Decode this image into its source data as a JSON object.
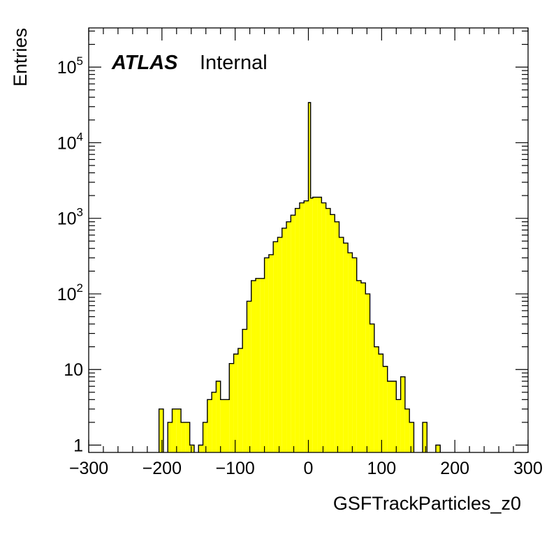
{
  "chart_data": {
    "type": "bar",
    "title": "",
    "label_bold": "ATLAS",
    "label_text": "Internal",
    "xlabel": "GSFTrackParticles_z0",
    "ylabel": "Entries",
    "xlim": [
      -300,
      300
    ],
    "ylim": [
      0.8,
      330000
    ],
    "yscale": "log",
    "fill_color": "#ffff00",
    "line_color": "#000000",
    "x_ticks": [
      -300,
      -200,
      -100,
      0,
      100,
      200,
      300
    ],
    "x_tick_labels": [
      "−300",
      "−200",
      "−100",
      "0",
      "100",
      "200",
      "300"
    ],
    "y_ticks": [
      {
        "value": 1,
        "label": "1",
        "exp": ""
      },
      {
        "value": 10,
        "label": "10",
        "exp": ""
      },
      {
        "value": 100,
        "label": "10",
        "exp": "2"
      },
      {
        "value": 1000,
        "label": "10",
        "exp": "3"
      },
      {
        "value": 10000,
        "label": "10",
        "exp": "4"
      },
      {
        "value": 100000,
        "label": "10",
        "exp": "5"
      }
    ],
    "bin_width": 6,
    "bins": [
      {
        "x0": -204,
        "y": 3
      },
      {
        "x0": -198,
        "y": 0
      },
      {
        "x0": -192,
        "y": 2
      },
      {
        "x0": -186,
        "y": 3
      },
      {
        "x0": -180,
        "y": 3
      },
      {
        "x0": -174,
        "y": 2
      },
      {
        "x0": -168,
        "y": 2
      },
      {
        "x0": -162,
        "y": 1
      },
      {
        "x0": -156,
        "y": 0
      },
      {
        "x0": -150,
        "y": 1
      },
      {
        "x0": -144,
        "y": 2
      },
      {
        "x0": -138,
        "y": 4
      },
      {
        "x0": -132,
        "y": 5
      },
      {
        "x0": -126,
        "y": 7
      },
      {
        "x0": -120,
        "y": 4
      },
      {
        "x0": -114,
        "y": 4
      },
      {
        "x0": -108,
        "y": 12
      },
      {
        "x0": -102,
        "y": 16
      },
      {
        "x0": -96,
        "y": 19
      },
      {
        "x0": -90,
        "y": 34
      },
      {
        "x0": -84,
        "y": 80
      },
      {
        "x0": -78,
        "y": 150
      },
      {
        "x0": -72,
        "y": 160
      },
      {
        "x0": -66,
        "y": 160
      },
      {
        "x0": -60,
        "y": 300
      },
      {
        "x0": -54,
        "y": 330
      },
      {
        "x0": -48,
        "y": 490
      },
      {
        "x0": -42,
        "y": 560
      },
      {
        "x0": -36,
        "y": 740
      },
      {
        "x0": -30,
        "y": 900
      },
      {
        "x0": -24,
        "y": 1100
      },
      {
        "x0": -18,
        "y": 1350
      },
      {
        "x0": -12,
        "y": 1600
      },
      {
        "x0": -6,
        "y": 1700
      },
      {
        "x0": 0,
        "y": 1850
      },
      {
        "x0": 6,
        "y": 1900
      },
      {
        "x0": 12,
        "y": 1900
      },
      {
        "x0": 18,
        "y": 1600
      },
      {
        "x0": 24,
        "y": 1350
      },
      {
        "x0": 30,
        "y": 1120
      },
      {
        "x0": 36,
        "y": 900
      },
      {
        "x0": 42,
        "y": 560
      },
      {
        "x0": 48,
        "y": 470
      },
      {
        "x0": 54,
        "y": 350
      },
      {
        "x0": 60,
        "y": 300
      },
      {
        "x0": 66,
        "y": 150
      },
      {
        "x0": 72,
        "y": 140
      },
      {
        "x0": 78,
        "y": 100
      },
      {
        "x0": 84,
        "y": 40
      },
      {
        "x0": 90,
        "y": 20
      },
      {
        "x0": 96,
        "y": 16
      },
      {
        "x0": 102,
        "y": 11
      },
      {
        "x0": 108,
        "y": 7
      },
      {
        "x0": 114,
        "y": 7
      },
      {
        "x0": 120,
        "y": 4
      },
      {
        "x0": 126,
        "y": 8
      },
      {
        "x0": 132,
        "y": 3
      },
      {
        "x0": 138,
        "y": 2
      },
      {
        "x0": 144,
        "y": 0
      },
      {
        "x0": 150,
        "y": 0
      },
      {
        "x0": 156,
        "y": 2
      },
      {
        "x0": 162,
        "y": 0
      },
      {
        "x0": 168,
        "y": 0
      },
      {
        "x0": 174,
        "y": 1
      },
      {
        "x0": 180,
        "y": 0
      }
    ],
    "spike": {
      "x0": 0,
      "x1": 3,
      "y": 34000
    }
  }
}
